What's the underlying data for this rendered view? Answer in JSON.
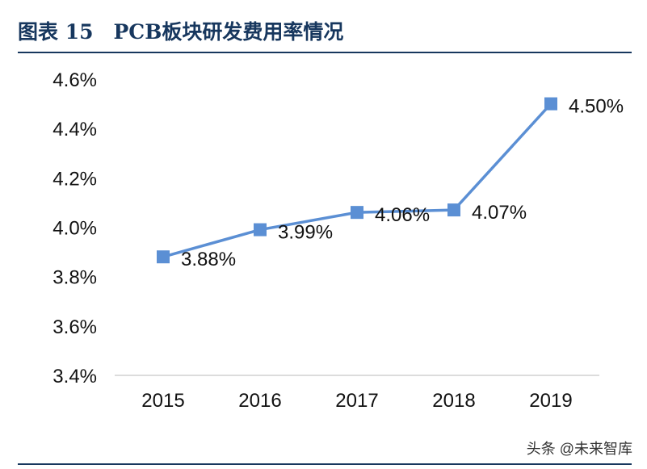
{
  "header": {
    "title": "图表 15　PCB板块研发费用率情况"
  },
  "watermark": "头条 @未来智库",
  "colors": {
    "series": "#5b8fd4",
    "rule": "#17375e"
  },
  "chart_data": {
    "type": "line",
    "title": "",
    "xlabel": "",
    "ylabel": "",
    "x": [
      "2015",
      "2016",
      "2017",
      "2018",
      "2019"
    ],
    "series": [
      {
        "values": [
          3.88,
          3.99,
          4.06,
          4.07,
          4.5
        ],
        "labels": [
          "3.88%",
          "3.99%",
          "4.06%",
          "4.07%",
          "4.50%"
        ],
        "marker": "square"
      }
    ],
    "ylim": [
      3.4,
      4.6
    ],
    "yticks": [
      "3.4%",
      "3.6%",
      "3.8%",
      "4.0%",
      "4.2%",
      "4.4%",
      "4.6%"
    ],
    "ytick_values": [
      3.4,
      3.6,
      3.8,
      4.0,
      4.2,
      4.4,
      4.6
    ],
    "grid": false,
    "legend": "none"
  }
}
